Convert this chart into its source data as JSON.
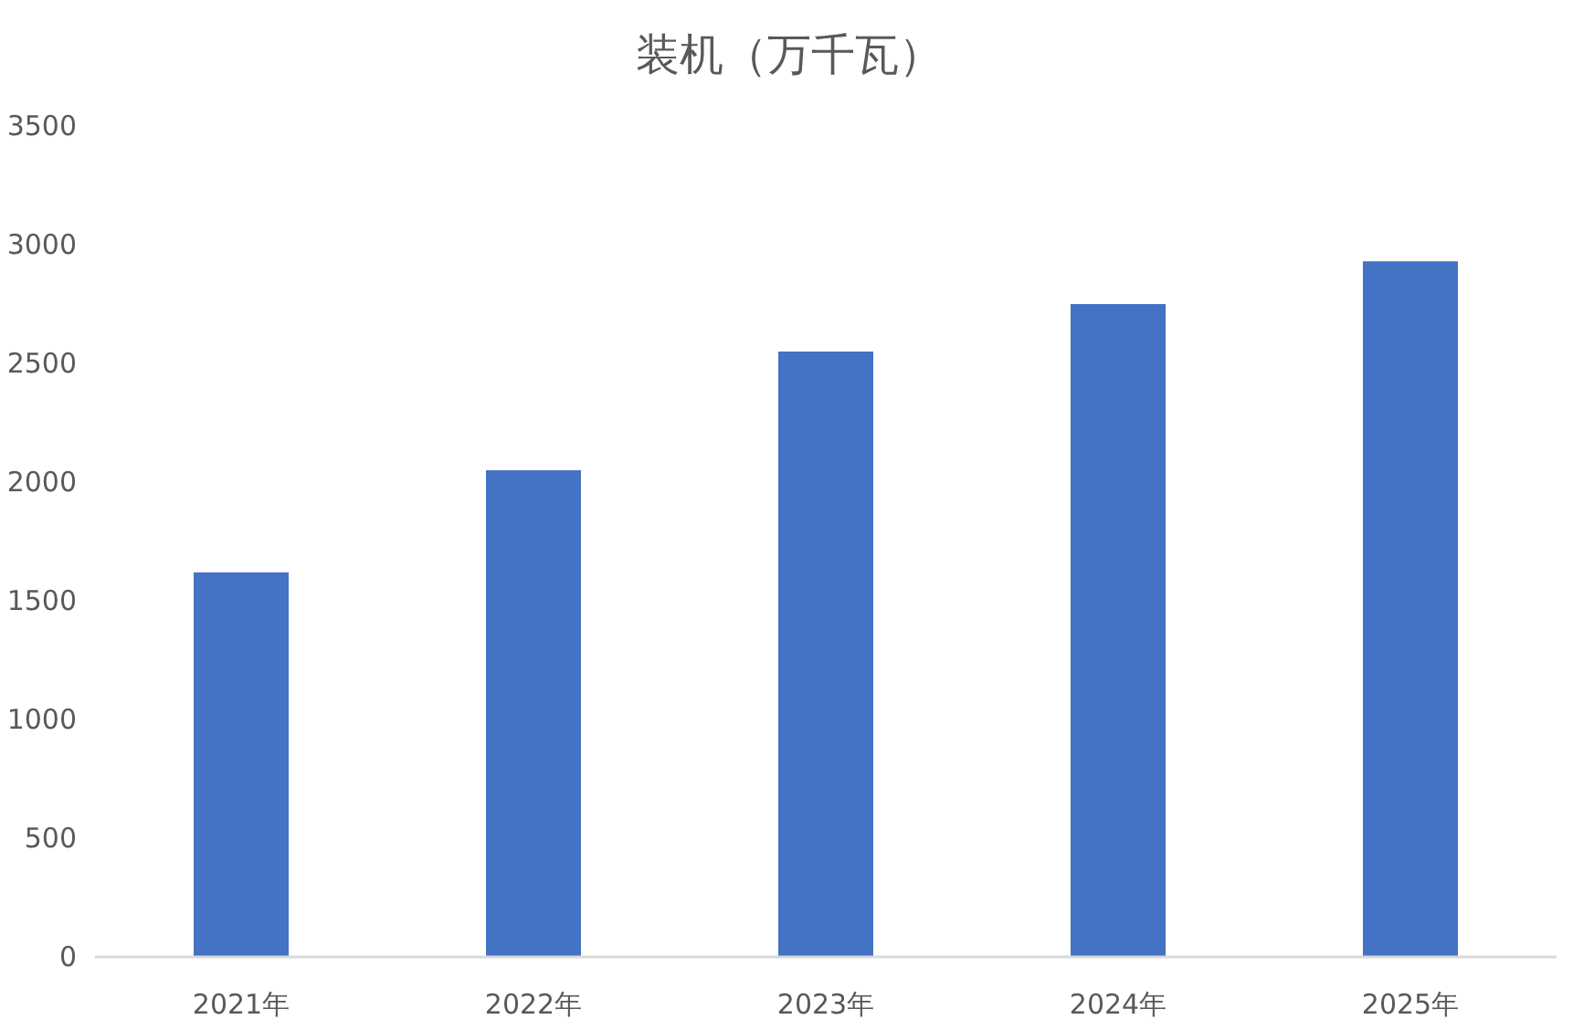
{
  "chart_data": {
    "type": "bar",
    "title": "装机（万千瓦）",
    "categories": [
      "2021年",
      "2022年",
      "2023年",
      "2024年",
      "2025年"
    ],
    "values": [
      1620,
      2050,
      2550,
      2750,
      2930
    ],
    "color": "#4472c4",
    "ylim": [
      0,
      3500
    ],
    "yticks": [
      0,
      500,
      1000,
      1500,
      2000,
      2500,
      3000,
      3500
    ]
  }
}
